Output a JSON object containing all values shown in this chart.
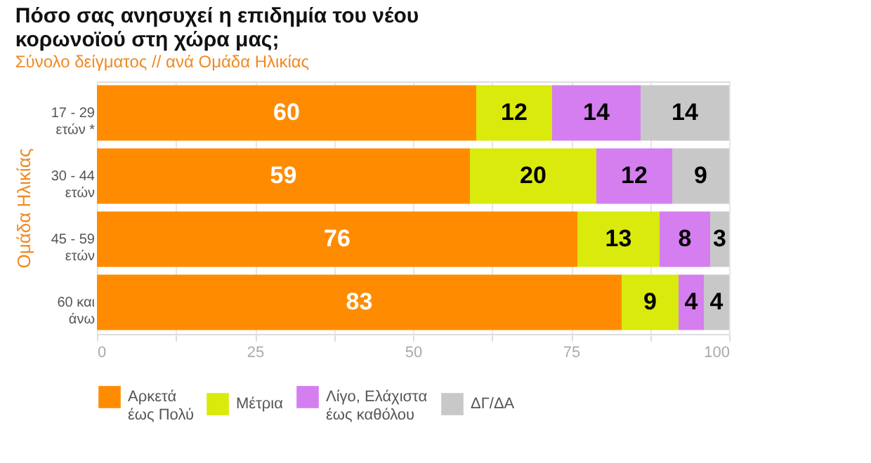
{
  "chart_data": {
    "type": "bar",
    "orientation": "horizontal",
    "stacked": true,
    "title": "Πόσο σας ανησυχεί η επιδημία του νέου\nκορωνοϊού στη χώρα μας;",
    "subtitle": "Σύνολο δείγματος // ανά Ομάδα Ηλικίας",
    "ylabel": "Ομάδα Ηλικίας",
    "categories": [
      "17 - 29\nετών *",
      "30 - 44\nετών",
      "45 - 59\nετών",
      "60 και\nάνω"
    ],
    "series": [
      {
        "name": "Αρκετά\nέως Πολύ",
        "color": "#ff8c00",
        "values": [
          60,
          59,
          76,
          83
        ]
      },
      {
        "name": "Μέτρια",
        "color": "#d9ea0c",
        "values": [
          12,
          20,
          13,
          9
        ]
      },
      {
        "name": "Λίγο, Ελάχιστα\nέως καθόλου",
        "color": "#d57ef0",
        "values": [
          14,
          12,
          8,
          4
        ]
      },
      {
        "name": "ΔΓ/ΔΑ",
        "color": "#c8c8c8",
        "values": [
          14,
          9,
          3,
          4
        ]
      }
    ],
    "xlim": [
      0,
      100
    ],
    "xticks": [
      0,
      {
        "value": 12.5,
        "label": null
      },
      25,
      {
        "value": 37.5,
        "label": null
      },
      50,
      {
        "value": 62.5,
        "label": null
      },
      75,
      {
        "value": 87.5,
        "label": null
      },
      100
    ],
    "grid": "x",
    "legend": "bottom",
    "data_labels": true
  }
}
